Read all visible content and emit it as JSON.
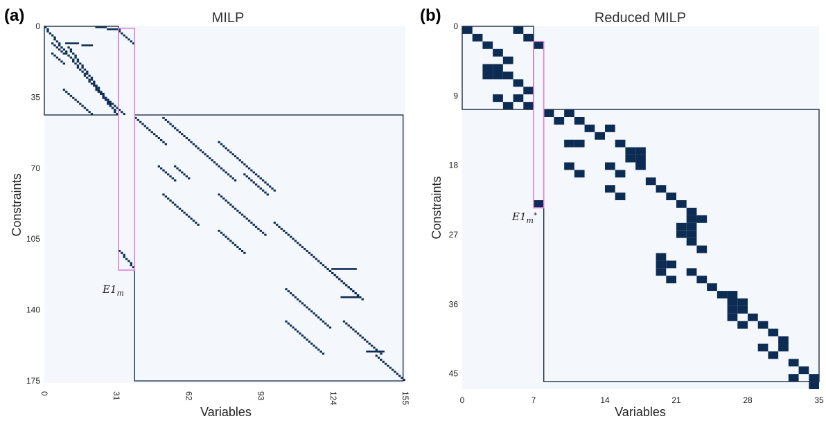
{
  "chart_data": [
    {
      "panel": "(a)",
      "type": "heatmap",
      "title": "MILP",
      "xlabel": "Variables",
      "ylabel": "Constraints",
      "xticks": [
        "0",
        "31",
        "62",
        "93",
        "124",
        "155"
      ],
      "yticks": [
        "0",
        "35",
        "70",
        "105",
        "140",
        "175"
      ],
      "xlim": [
        0,
        155
      ],
      "ylim": [
        0,
        176
      ],
      "annotation": "E1_m",
      "colors": {
        "background": "#f4f8fc",
        "cell": "#0d2c54",
        "block_border": "#1f2f45",
        "highlight": "#e07fe0"
      },
      "blocks": [
        {
          "x": [
            0,
            32
          ],
          "y": [
            0,
            44
          ]
        },
        {
          "x": [
            39,
            155
          ],
          "y": [
            44,
            176
          ]
        }
      ],
      "highlight": {
        "x": [
          32,
          39
        ],
        "y": [
          1,
          121
        ]
      },
      "segments": [
        {
          "r0": 0,
          "r1": 43,
          "c0": 0,
          "c1": 31
        },
        {
          "r0": 10,
          "r1": 43,
          "c0": 10,
          "c1": 31
        },
        {
          "r0": 2,
          "r1": 8,
          "c0": 32,
          "c1": 38
        },
        {
          "r0": 111,
          "r1": 119,
          "c0": 32,
          "c1": 38
        },
        {
          "r0": 45,
          "r1": 58,
          "c0": 39,
          "c1": 52
        },
        {
          "r0": 45,
          "r1": 76,
          "c0": 51,
          "c1": 82
        },
        {
          "r0": 57,
          "r1": 81,
          "c0": 75,
          "c1": 99
        },
        {
          "r0": 69,
          "r1": 76,
          "c0": 49,
          "c1": 56
        },
        {
          "r0": 69,
          "r1": 75,
          "c0": 56,
          "c1": 62
        },
        {
          "r0": 83,
          "r1": 98,
          "c0": 51,
          "c1": 66
        },
        {
          "r0": 83,
          "r1": 103,
          "c0": 75,
          "c1": 95
        },
        {
          "r0": 73,
          "r1": 83,
          "c0": 86,
          "c1": 96
        },
        {
          "r0": 101,
          "r1": 112,
          "c0": 75,
          "c1": 86
        },
        {
          "r0": 97,
          "r1": 135,
          "c0": 99,
          "c1": 137
        },
        {
          "r0": 120,
          "r1": 133,
          "c0": 122,
          "c1": 135
        },
        {
          "r0": 130,
          "r1": 149,
          "c0": 104,
          "c1": 123
        },
        {
          "r0": 146,
          "r1": 162,
          "c0": 104,
          "c1": 120
        },
        {
          "r0": 146,
          "r1": 162,
          "c0": 129,
          "c1": 145
        },
        {
          "r0": 163,
          "r1": 175,
          "c0": 143,
          "c1": 155
        },
        {
          "r0": 8,
          "r1": 13,
          "c0": 3,
          "c1": 8
        },
        {
          "r0": 13,
          "r1": 18,
          "c0": 3,
          "c1": 8
        },
        {
          "r0": 31,
          "r1": 43,
          "c0": 8,
          "c1": 20
        },
        {
          "r0": 31,
          "r1": 43,
          "c0": 22,
          "c1": 34
        }
      ],
      "hbars": [
        {
          "r": 0,
          "c0": 22,
          "c1": 26
        },
        {
          "r": 1,
          "c0": 27,
          "c1": 32
        },
        {
          "r": 8,
          "c0": 9,
          "c1": 14
        },
        {
          "r": 9,
          "c0": 16,
          "c1": 20
        },
        {
          "r": 120,
          "c0": 124,
          "c1": 134
        },
        {
          "r": 134,
          "c0": 128,
          "c1": 135
        },
        {
          "r": 161,
          "c0": 139,
          "c1": 146
        }
      ]
    },
    {
      "panel": "(b)",
      "type": "heatmap",
      "title": "Reduced MILP",
      "xlabel": "Variables",
      "ylabel": "Constraints",
      "xticks": [
        "0",
        "7",
        "14",
        "21",
        "28",
        "35"
      ],
      "yticks": [
        "0",
        "9",
        "18",
        "27",
        "36",
        "45"
      ],
      "xlim": [
        0,
        35
      ],
      "ylim": [
        0,
        47
      ],
      "annotation": "E1_m*",
      "colors": {
        "background": "#f4f8fc",
        "cell": "#0d2c54",
        "block_border": "#1f2f45",
        "highlight": "#e07fe0"
      },
      "blocks": [
        {
          "x": [
            0,
            7
          ],
          "y": [
            0,
            11
          ]
        },
        {
          "x": [
            8,
            35
          ],
          "y": [
            11,
            47
          ]
        }
      ],
      "highlight": {
        "x": [
          7,
          8
        ],
        "y": [
          2,
          24
        ]
      },
      "cells": [
        [
          0,
          0
        ],
        [
          0,
          5
        ],
        [
          1,
          1
        ],
        [
          1,
          6
        ],
        [
          2,
          2
        ],
        [
          3,
          3
        ],
        [
          4,
          4
        ],
        [
          5,
          2
        ],
        [
          5,
          3
        ],
        [
          6,
          2
        ],
        [
          6,
          3
        ],
        [
          6,
          4
        ],
        [
          7,
          5
        ],
        [
          8,
          6
        ],
        [
          9,
          3
        ],
        [
          9,
          5
        ],
        [
          10,
          4
        ],
        [
          10,
          6
        ],
        [
          2,
          7
        ],
        [
          23,
          7
        ],
        [
          11,
          8
        ],
        [
          11,
          10
        ],
        [
          12,
          9
        ],
        [
          12,
          11
        ],
        [
          13,
          12
        ],
        [
          13,
          14
        ],
        [
          14,
          13
        ],
        [
          15,
          10
        ],
        [
          15,
          11
        ],
        [
          15,
          15
        ],
        [
          16,
          16
        ],
        [
          16,
          17
        ],
        [
          17,
          16
        ],
        [
          17,
          17
        ],
        [
          18,
          17
        ],
        [
          18,
          10
        ],
        [
          18,
          14
        ],
        [
          19,
          11
        ],
        [
          19,
          15
        ],
        [
          21,
          14
        ],
        [
          22,
          15
        ],
        [
          20,
          18
        ],
        [
          21,
          19
        ],
        [
          22,
          20
        ],
        [
          23,
          21
        ],
        [
          24,
          22
        ],
        [
          25,
          22
        ],
        [
          25,
          23
        ],
        [
          26,
          21
        ],
        [
          26,
          22
        ],
        [
          27,
          21
        ],
        [
          27,
          22
        ],
        [
          28,
          22
        ],
        [
          29,
          23
        ],
        [
          30,
          19
        ],
        [
          31,
          19
        ],
        [
          31,
          20
        ],
        [
          32,
          19
        ],
        [
          32,
          22
        ],
        [
          33,
          20
        ],
        [
          33,
          23
        ],
        [
          34,
          24
        ],
        [
          35,
          25
        ],
        [
          35,
          26
        ],
        [
          36,
          26
        ],
        [
          36,
          27
        ],
        [
          37,
          26
        ],
        [
          37,
          27
        ],
        [
          38,
          26
        ],
        [
          38,
          28
        ],
        [
          39,
          27
        ],
        [
          39,
          29
        ],
        [
          40,
          30
        ],
        [
          41,
          31
        ],
        [
          42,
          29
        ],
        [
          42,
          31
        ],
        [
          43,
          30
        ],
        [
          44,
          32
        ],
        [
          45,
          33
        ],
        [
          46,
          32
        ],
        [
          46,
          34
        ],
        [
          47,
          34
        ]
      ]
    }
  ]
}
